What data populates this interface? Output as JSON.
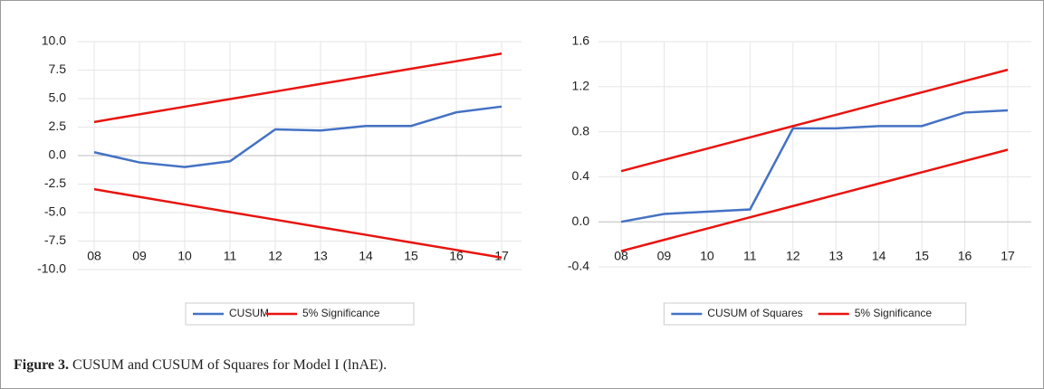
{
  "chart_data": [
    {
      "type": "line",
      "categories": [
        "08",
        "09",
        "10",
        "11",
        "12",
        "13",
        "14",
        "15",
        "16",
        "17"
      ],
      "series": [
        {
          "name": "CUSUM",
          "color": "#4472c4",
          "values": [
            0.3,
            -0.6,
            -1.0,
            -0.5,
            2.3,
            2.2,
            2.6,
            2.6,
            3.8,
            4.3
          ]
        },
        {
          "name": "5% Significance",
          "color": "#e8140f",
          "values": [
            2.95,
            3.62,
            4.29,
            4.96,
            5.62,
            6.29,
            6.95,
            7.62,
            8.28,
            8.95
          ],
          "lower": [
            -2.95,
            -3.62,
            -4.29,
            -4.96,
            -5.62,
            -6.29,
            -6.95,
            -7.62,
            -8.28,
            -8.95
          ]
        }
      ],
      "ylim": [
        -10,
        10
      ],
      "yticks": [
        {
          "value": -10,
          "label": "-10.0"
        },
        -7.5,
        {
          "value": -5,
          "label": "-5.0"
        },
        -2.5,
        {
          "value": 0,
          "label": "0.0"
        },
        2.5,
        {
          "value": 5,
          "label": "5.0"
        },
        7.5,
        {
          "value": 10,
          "label": "10.0"
        }
      ],
      "grid": true
    },
    {
      "type": "line",
      "categories": [
        "08",
        "09",
        "10",
        "11",
        "12",
        "13",
        "14",
        "15",
        "16",
        "17"
      ],
      "series": [
        {
          "name": "CUSUM of Squares",
          "color": "#4472c4",
          "values": [
            0.0,
            0.07,
            0.09,
            0.11,
            0.83,
            0.83,
            0.85,
            0.85,
            0.97,
            0.99
          ]
        },
        {
          "name": "5% Significance",
          "color": "#e8140f",
          "values": [
            0.45,
            0.55,
            0.65,
            0.75,
            0.85,
            0.95,
            1.05,
            1.15,
            1.25,
            1.35
          ],
          "lower": [
            -0.26,
            -0.16,
            -0.06,
            0.04,
            0.14,
            0.24,
            0.34,
            0.44,
            0.54,
            0.64
          ]
        }
      ],
      "ylim": [
        -0.4,
        1.6
      ],
      "yticks": [
        -0.4,
        {
          "value": 0,
          "label": "0.0"
        },
        0.4,
        0.8,
        1.2,
        1.6
      ],
      "grid": true
    }
  ],
  "caption": {
    "label": "Figure 3.",
    "text": "CUSUM and CUSUM of Squares for Model I (lnAE)."
  }
}
